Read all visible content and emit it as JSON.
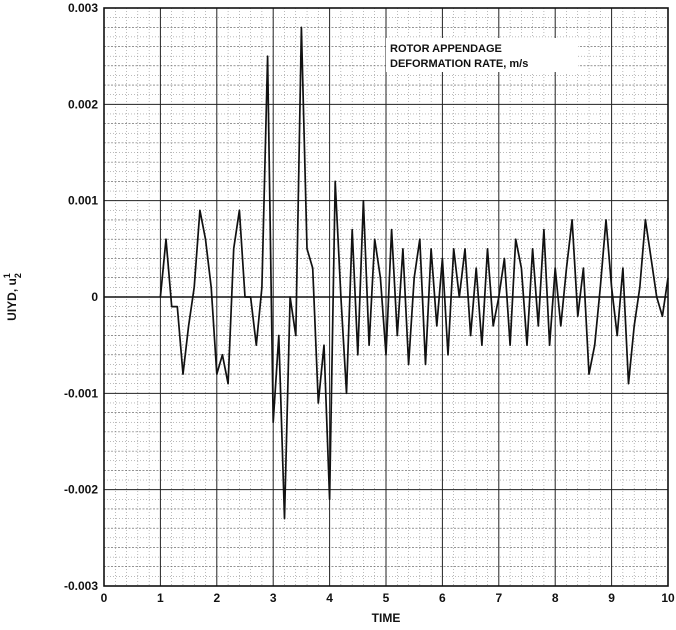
{
  "chart_data": {
    "type": "line",
    "title": "",
    "annotation": [
      "ROTOR APPENDAGE",
      "DEFORMATION RATE, m/s"
    ],
    "xlabel": "TIME",
    "ylabel": "UIYD, u",
    "ylabel_super": "1",
    "ylabel_sub": "2",
    "xlim": [
      0,
      10
    ],
    "ylim": [
      -0.003,
      0.003
    ],
    "xticks": [
      0,
      1,
      2,
      3,
      4,
      5,
      6,
      7,
      8,
      9,
      10
    ],
    "xtick_labels": [
      "0",
      "1",
      "2",
      "3",
      "4",
      "5",
      "6",
      "7",
      "8",
      "9",
      "10"
    ],
    "yticks": [
      0.003,
      0.002,
      0.001,
      0,
      -0.001,
      -0.002,
      -0.003
    ],
    "ytick_labels": [
      "0.003",
      "0.002",
      "0.001",
      "0",
      "-0.001",
      "-0.002",
      "-0.003"
    ],
    "grid": true,
    "series": [
      {
        "x": [
          1.0,
          1.1,
          1.2,
          1.3,
          1.4,
          1.5,
          1.6,
          1.7,
          1.8,
          1.9,
          2.0,
          2.1,
          2.2,
          2.3,
          2.4,
          2.5,
          2.6,
          2.7,
          2.8,
          2.9,
          3.0,
          3.1,
          3.2,
          3.3,
          3.4,
          3.5,
          3.6,
          3.7,
          3.8,
          3.9,
          4.0,
          4.1,
          4.2,
          4.3,
          4.4,
          4.5,
          4.6,
          4.7,
          4.8,
          4.9,
          5.0,
          5.1,
          5.2,
          5.3,
          5.4,
          5.5,
          5.6,
          5.7,
          5.8,
          5.9,
          6.0,
          6.1,
          6.2,
          6.3,
          6.4,
          6.5,
          6.6,
          6.7,
          6.8,
          6.9,
          7.0,
          7.1,
          7.2,
          7.3,
          7.4,
          7.5,
          7.6,
          7.7,
          7.8,
          7.9,
          8.0,
          8.1,
          8.2,
          8.3,
          8.4,
          8.5,
          8.6,
          8.7,
          8.8,
          8.9,
          9.0,
          9.1,
          9.2,
          9.3,
          9.4,
          9.5,
          9.6,
          9.7,
          9.8,
          9.9,
          10.0
        ],
        "y": [
          0.0,
          0.0006,
          -0.0001,
          -0.0001,
          -0.0008,
          -0.0003,
          0.0001,
          0.0009,
          0.0006,
          0.0001,
          -0.0008,
          -0.0006,
          -0.0009,
          0.0005,
          0.0009,
          0.0,
          0.0,
          -0.0005,
          0.0001,
          0.0025,
          -0.0013,
          -0.0004,
          -0.0023,
          0.0,
          -0.0004,
          0.0028,
          0.0005,
          0.0003,
          -0.0011,
          -0.0005,
          -0.0021,
          0.0012,
          0.0,
          -0.001,
          0.0007,
          -0.0006,
          0.001,
          -0.0005,
          0.0006,
          0.0002,
          -0.0006,
          0.0007,
          -0.0004,
          0.0005,
          -0.0007,
          0.0002,
          0.0006,
          -0.0007,
          0.0005,
          -0.0003,
          0.0004,
          -0.0006,
          0.0005,
          0.0,
          0.0005,
          -0.0004,
          0.0003,
          -0.0005,
          0.0005,
          -0.0003,
          0.0,
          0.0004,
          -0.0005,
          0.0006,
          0.0003,
          -0.0005,
          0.0005,
          -0.0003,
          0.0007,
          -0.0005,
          0.0003,
          -0.0003,
          0.0003,
          0.0008,
          -0.0002,
          0.0003,
          -0.0008,
          -0.0005,
          0.0001,
          0.0008,
          0.0001,
          -0.0004,
          0.0003,
          -0.0009,
          -0.0003,
          0.0001,
          0.0008,
          0.0004,
          0.0,
          -0.0002,
          0.0002
        ]
      }
    ]
  }
}
